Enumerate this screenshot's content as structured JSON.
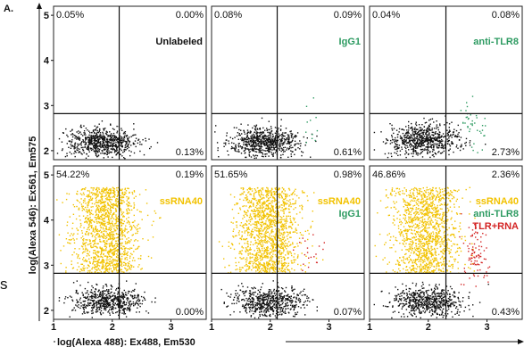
{
  "figure_label": "A.",
  "stray_mark": "s",
  "y_axis_label": "log(Alexa 546): Ex561, Em575",
  "x_axis_label": "log(Alexa 488): Ex488, Em530",
  "y_ticks": [
    "2",
    "3",
    "4",
    "5"
  ],
  "x_ticks": [
    "1",
    "2",
    "3"
  ],
  "colors": {
    "unlabeled": "#111111",
    "ssrna": "#f2c200",
    "tlr8": "#2e9b62",
    "tlr_rna": "#d42525"
  },
  "chart_data": [
    {
      "type": "scatter",
      "panel": "top-left",
      "labels": [
        {
          "text": "Unlabeled",
          "color": "#111111"
        }
      ],
      "quadrants": {
        "ul": "0.05%",
        "ur": "0.00%",
        "ll": "",
        "lr": "0.13%"
      },
      "populations": [
        {
          "color": "#111111",
          "x_center": 1.8,
          "y_center": 2.2,
          "count": 700
        }
      ],
      "xlim": [
        1,
        3.6
      ],
      "ylim": [
        1.8,
        5.2
      ]
    },
    {
      "type": "scatter",
      "panel": "top-middle",
      "labels": [
        {
          "text": "IgG1",
          "color": "#2e9b62"
        }
      ],
      "quadrants": {
        "ul": "0.08%",
        "ur": "0.09%",
        "ll": "",
        "lr": "0.61%"
      },
      "populations": [
        {
          "color": "#111111",
          "x_center": 1.9,
          "y_center": 2.2,
          "count": 700
        },
        {
          "color": "#2e9b62",
          "x_center": 2.7,
          "y_center": 2.5,
          "count": 12
        }
      ],
      "xlim": [
        1,
        3.6
      ],
      "ylim": [
        1.8,
        5.2
      ]
    },
    {
      "type": "scatter",
      "panel": "top-right",
      "labels": [
        {
          "text": "anti-TLR8",
          "color": "#2e9b62"
        }
      ],
      "quadrants": {
        "ul": "0.04%",
        "ur": "0.08%",
        "ll": "",
        "lr": "2.73%"
      },
      "populations": [
        {
          "color": "#111111",
          "x_center": 1.9,
          "y_center": 2.25,
          "count": 700
        },
        {
          "color": "#2e9b62",
          "x_center": 2.75,
          "y_center": 2.55,
          "count": 40
        }
      ],
      "xlim": [
        1,
        3.6
      ],
      "ylim": [
        1.8,
        5.2
      ]
    },
    {
      "type": "scatter",
      "panel": "bottom-left",
      "labels": [
        {
          "text": "ssRNA40",
          "color": "#f2c200"
        }
      ],
      "quadrants": {
        "ul": "54.22%",
        "ur": "0.19%",
        "ll": "",
        "lr": "0.00%"
      },
      "populations": [
        {
          "color": "#f2c200",
          "x_center": 1.9,
          "y_center": 3.5,
          "count": 1400
        },
        {
          "color": "#111111",
          "x_center": 1.9,
          "y_center": 2.2,
          "count": 600
        }
      ],
      "xlim": [
        1,
        3.6
      ],
      "ylim": [
        1.8,
        5.2
      ]
    },
    {
      "type": "scatter",
      "panel": "bottom-middle",
      "labels": [
        {
          "text": "ssRNA40",
          "color": "#f2c200"
        },
        {
          "text": "IgG1",
          "color": "#2e9b62"
        }
      ],
      "quadrants": {
        "ul": "51.65%",
        "ur": "0.98%",
        "ll": "",
        "lr": "0.07%"
      },
      "populations": [
        {
          "color": "#f2c200",
          "x_center": 1.95,
          "y_center": 3.5,
          "count": 1400
        },
        {
          "color": "#111111",
          "x_center": 1.95,
          "y_center": 2.2,
          "count": 600
        },
        {
          "color": "#d42525",
          "x_center": 2.7,
          "y_center": 3.3,
          "count": 20
        }
      ],
      "xlim": [
        1,
        3.6
      ],
      "ylim": [
        1.8,
        5.2
      ]
    },
    {
      "type": "scatter",
      "panel": "bottom-right",
      "labels": [
        {
          "text": "ssRNA40",
          "color": "#f2c200"
        },
        {
          "text": "anti-TLR8",
          "color": "#2e9b62"
        },
        {
          "text": "TLR+RNA",
          "color": "#d42525"
        }
      ],
      "quadrants": {
        "ul": "46.86%",
        "ur": "2.36%",
        "ll": "",
        "lr": "0.43%"
      },
      "populations": [
        {
          "color": "#f2c200",
          "x_center": 1.95,
          "y_center": 3.5,
          "count": 1300
        },
        {
          "color": "#111111",
          "x_center": 1.95,
          "y_center": 2.2,
          "count": 600
        },
        {
          "color": "#d42525",
          "x_center": 2.8,
          "y_center": 3.3,
          "count": 90
        }
      ],
      "xlim": [
        1,
        3.6
      ],
      "ylim": [
        1.8,
        5.2
      ]
    }
  ]
}
